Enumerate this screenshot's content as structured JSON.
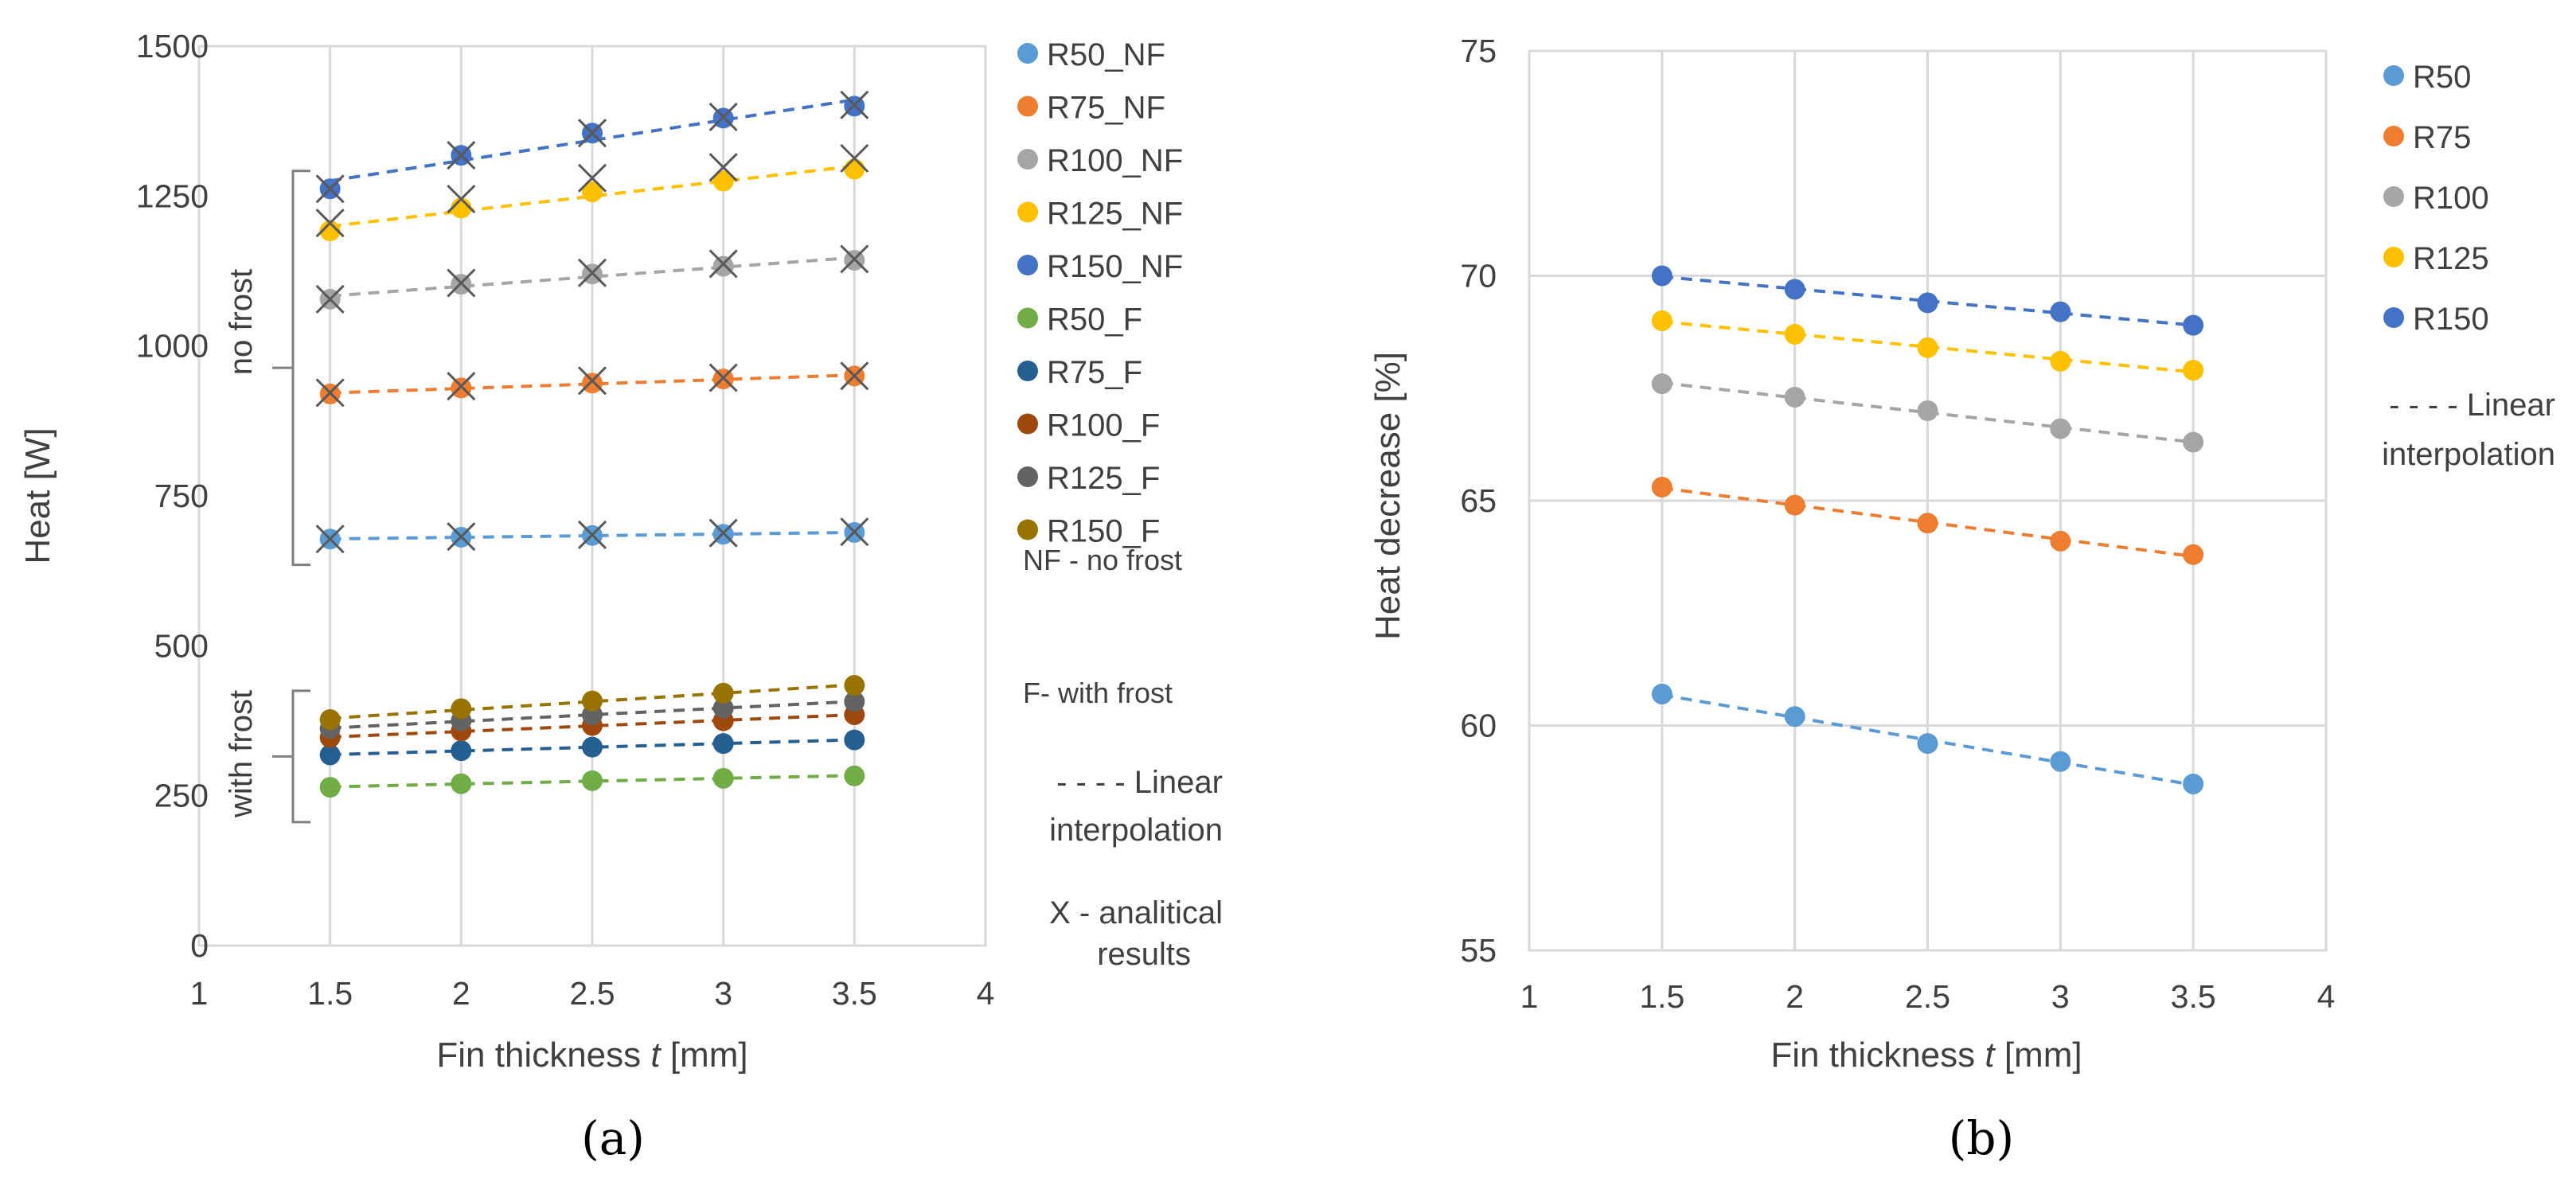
{
  "chart_data": [
    {
      "type": "line",
      "panel_label": "(a)",
      "xlabel_prefix": "Fin thickness ",
      "xlabel_italic": "t",
      "xlabel_suffix": " [mm]",
      "ylabel": "Heat [W]",
      "xlim": [
        1,
        4
      ],
      "ylim": [
        0,
        1500
      ],
      "x_ticks": [
        "1",
        "1.5",
        "2",
        "2.5",
        "3",
        "3.5",
        "4"
      ],
      "y_ticks": [
        "0",
        "250",
        "500",
        "750",
        "1000",
        "1250",
        "1500"
      ],
      "grid": "vertical",
      "x": [
        1.5,
        2,
        2.5,
        3,
        3.5
      ],
      "series": [
        {
          "name": "R50_NF",
          "color": "#5b9bd5",
          "values": [
            678,
            681,
            684,
            686,
            689
          ]
        },
        {
          "name": "R75_NF",
          "color": "#ed7d31",
          "values": [
            920,
            930,
            938,
            945,
            950
          ]
        },
        {
          "name": "R100_NF",
          "color": "#a5a5a5",
          "values": [
            1078,
            1103,
            1120,
            1133,
            1143
          ]
        },
        {
          "name": "R125_NF",
          "color": "#ffc000",
          "values": [
            1192,
            1230,
            1257,
            1275,
            1295
          ]
        },
        {
          "name": "R150_NF",
          "color": "#4472c4",
          "values": [
            1262,
            1318,
            1355,
            1380,
            1400
          ]
        },
        {
          "name": "R50_F",
          "color": "#70ad47",
          "values": [
            264,
            270,
            275,
            279,
            283
          ]
        },
        {
          "name": "R75_F",
          "color": "#255e91",
          "values": [
            318,
            325,
            331,
            337,
            343
          ]
        },
        {
          "name": "R100_F",
          "color": "#9e480e",
          "values": [
            347,
            358,
            367,
            375,
            385
          ]
        },
        {
          "name": "R125_F",
          "color": "#636363",
          "values": [
            362,
            375,
            385,
            396,
            407
          ]
        },
        {
          "name": "R150_F",
          "color": "#997300",
          "values": [
            377,
            395,
            408,
            421,
            434
          ]
        }
      ],
      "analytical_results": [
        {
          "of": "R50_NF",
          "values": [
            678,
            682,
            685,
            688,
            690
          ]
        },
        {
          "of": "R75_NF",
          "values": [
            922,
            933,
            942,
            947,
            950
          ]
        },
        {
          "of": "R100_NF",
          "values": [
            1078,
            1105,
            1122,
            1137,
            1145
          ]
        },
        {
          "of": "R125_NF",
          "values": [
            1205,
            1245,
            1280,
            1298,
            1313
          ]
        },
        {
          "of": "R150_NF",
          "values": [
            1262,
            1318,
            1355,
            1382,
            1402
          ]
        }
      ],
      "group_labels": {
        "upper": "no frost",
        "lower": "with frost"
      },
      "notes": [
        "NF - no frost",
        "F- with frost"
      ],
      "trend_note": [
        "- - - - Linear",
        "interpolation"
      ],
      "analytic_note": [
        "X - analitical",
        "results"
      ]
    },
    {
      "type": "line",
      "panel_label": "(b)",
      "xlabel_prefix": "Fin thickness ",
      "xlabel_italic": "t",
      "xlabel_suffix": " [mm]",
      "ylabel": "Heat decrease [%]",
      "xlim": [
        1,
        4
      ],
      "ylim": [
        55,
        75
      ],
      "x_ticks": [
        "1",
        "1.5",
        "2",
        "2.5",
        "3",
        "3.5",
        "4"
      ],
      "y_ticks": [
        "55",
        "60",
        "65",
        "70",
        "75"
      ],
      "grid": "both",
      "x": [
        1.5,
        2,
        2.5,
        3,
        3.5
      ],
      "series": [
        {
          "name": "R50",
          "color": "#5b9bd5",
          "values": [
            60.7,
            60.2,
            59.6,
            59.2,
            58.7
          ]
        },
        {
          "name": "R75",
          "color": "#ed7d31",
          "values": [
            65.3,
            64.9,
            64.5,
            64.1,
            63.8
          ]
        },
        {
          "name": "R100",
          "color": "#a5a5a5",
          "values": [
            67.6,
            67.3,
            67.0,
            66.6,
            66.3
          ]
        },
        {
          "name": "R125",
          "color": "#ffc000",
          "values": [
            69.0,
            68.7,
            68.4,
            68.1,
            67.9
          ]
        },
        {
          "name": "R150",
          "color": "#4472c4",
          "values": [
            70.0,
            69.7,
            69.4,
            69.2,
            68.9
          ]
        }
      ],
      "trend_note": [
        "- - - - Linear",
        "interpolation"
      ]
    }
  ]
}
